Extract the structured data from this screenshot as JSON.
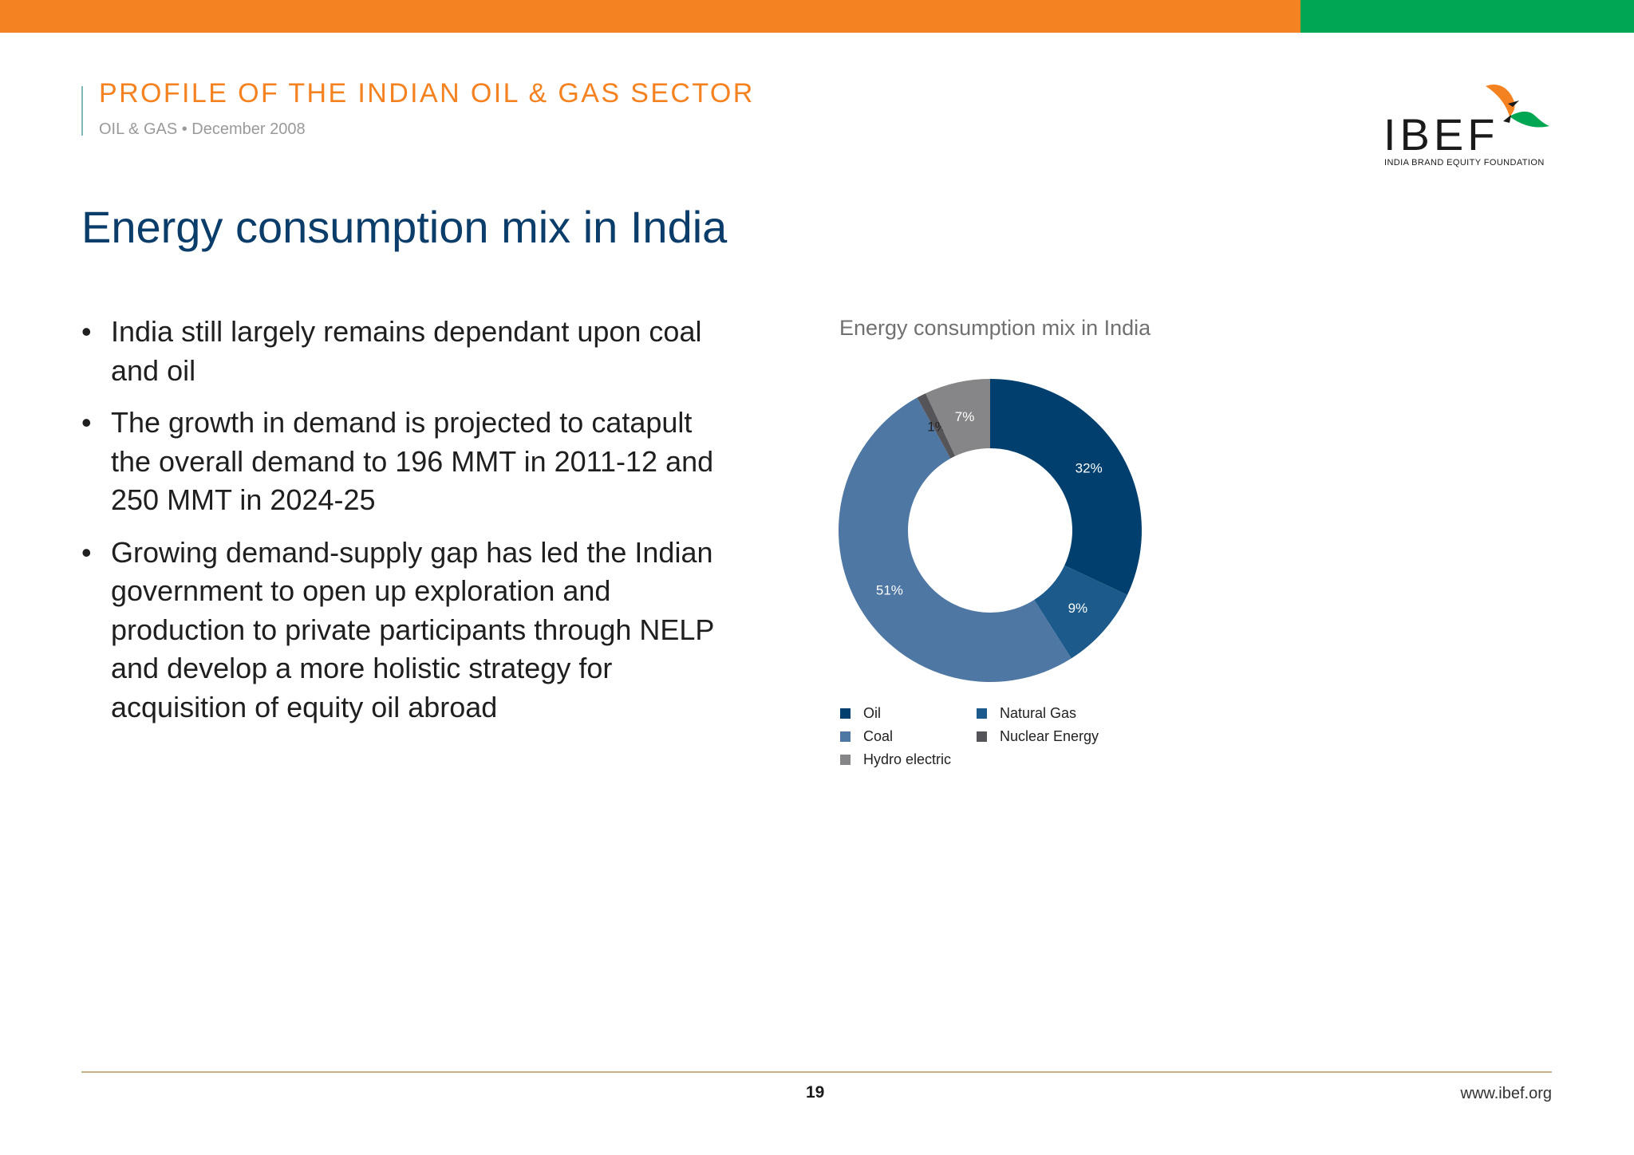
{
  "header": {
    "title": "PROFILE OF THE INDIAN OIL & GAS SECTOR",
    "subtitle": "OIL & GAS • December 2008"
  },
  "logo": {
    "text": "IBEF",
    "tagline": "INDIA BRAND EQUITY FOUNDATION",
    "icon": "bird-icon"
  },
  "colors": {
    "top_bar_orange": "#f58220",
    "top_bar_green": "#00a651",
    "title_blue": "#0b3d6b"
  },
  "page_title": "Energy consumption mix in India",
  "bullets": [
    {
      "marker": "•",
      "text": "India still largely remains dependant upon coal and oil"
    },
    {
      "marker": "•",
      "text": "The growth in demand is projected to catapult the overall demand to 196 MMT in 2011-12 and 250 MMT in 2024-25"
    },
    {
      "marker": "•",
      "text": "Growing demand-supply gap has led the Indian government to open up exploration and production to private participants through NELP and develop a more holistic strategy for acquisition of equity oil abroad"
    }
  ],
  "chart_data": {
    "type": "pie",
    "style": "donut",
    "title": "Energy consumption mix in India",
    "legend_position": "bottom",
    "categories": [
      "Oil",
      "Natural Gas",
      "Coal",
      "Nuclear Energy",
      "Hydro electric"
    ],
    "values": [
      32,
      9,
      51,
      1,
      7
    ],
    "labels": [
      "32%",
      "9%",
      "51%",
      "1%",
      "7%"
    ],
    "colors": [
      "#003f6e",
      "#1b5a8a",
      "#4e77a3",
      "#555559",
      "#868688"
    ],
    "label_colors": [
      "#ffffff",
      "#ffffff",
      "#ffffff",
      "#222222",
      "#ffffff"
    ]
  },
  "footer": {
    "page_number": "19",
    "url": "www.ibef.org"
  }
}
